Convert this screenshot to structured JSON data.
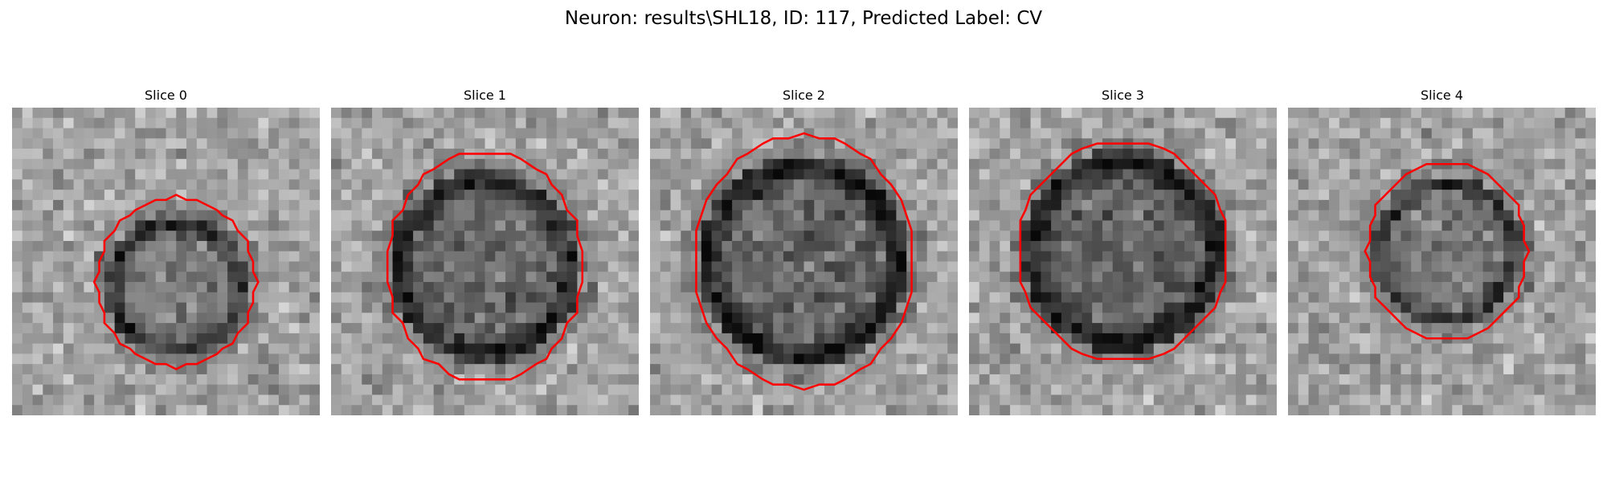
{
  "figure": {
    "title": "Neuron: results\\SHL18, ID: 117, Predicted Label: CV",
    "grid": "30x30 px",
    "contour_color": "#ff0000",
    "background": "#ffffff"
  },
  "panels": [
    {
      "title": "Slice 0",
      "outline_center": [
        16.0,
        17.0
      ],
      "outline_radius": [
        7.8,
        8.3
      ],
      "dark_core": [
        16.0,
        17.5,
        7.0,
        0.5
      ]
    },
    {
      "title": "Slice 1",
      "outline_center": [
        15.0,
        15.5
      ],
      "outline_radius": [
        9.5,
        11.2
      ],
      "dark_core": [
        15.0,
        15.5,
        9.5,
        0.28
      ]
    },
    {
      "title": "Slice 2",
      "outline_center": [
        15.0,
        15.0
      ],
      "outline_radius": [
        10.7,
        12.3
      ],
      "dark_core": [
        15.0,
        15.0,
        10.5,
        0.25
      ]
    },
    {
      "title": "Slice 3",
      "outline_center": [
        15.0,
        14.0
      ],
      "outline_radius": [
        10.2,
        10.7
      ],
      "dark_core": [
        15.0,
        14.0,
        10.0,
        0.22
      ]
    },
    {
      "title": "Slice 4",
      "outline_center": [
        15.5,
        14.0
      ],
      "outline_radius": [
        7.8,
        8.7
      ],
      "dark_core": [
        15.5,
        14.0,
        7.5,
        0.5
      ]
    }
  ]
}
